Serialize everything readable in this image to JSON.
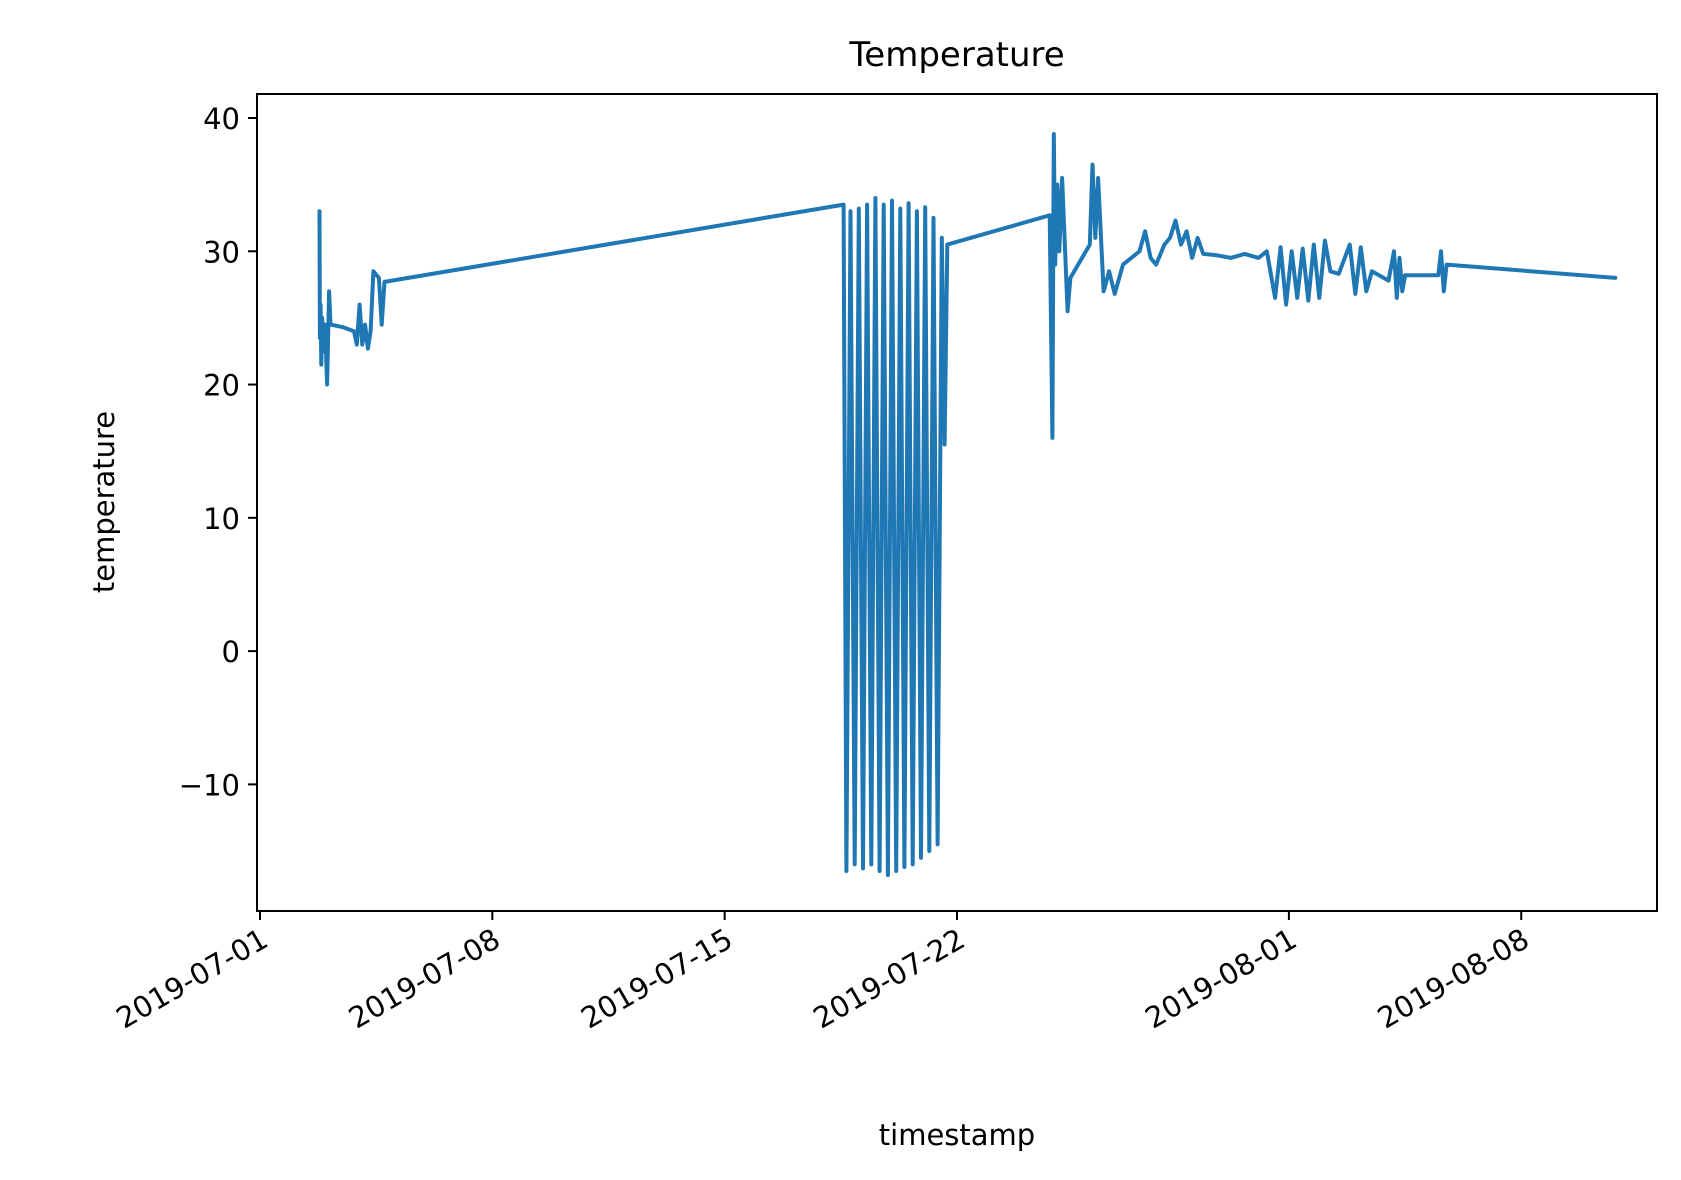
{
  "chart_data": {
    "type": "line",
    "title": "Temperature",
    "xlabel": "timestamp",
    "ylabel": "temperature",
    "x_ticks": [
      "2019-07-01",
      "2019-07-08",
      "2019-07-15",
      "2019-07-22",
      "2019-08-01",
      "2019-08-08"
    ],
    "y_ticks": [
      -10,
      0,
      10,
      20,
      30,
      40
    ],
    "xlim": [
      "2019-07-01",
      "2019-08-12"
    ],
    "ylim": [
      -19.5,
      41.8
    ],
    "grid": false,
    "line_color": "#1f77b4",
    "series": [
      {
        "points": [
          [
            "2019-07-02 19:00",
            33.0
          ],
          [
            "2019-07-02 19:20",
            23.5
          ],
          [
            "2019-07-02 19:50",
            26.0
          ],
          [
            "2019-07-02 20:20",
            21.5
          ],
          [
            "2019-07-02 21:00",
            25.0
          ],
          [
            "2019-07-02 22:00",
            22.5
          ],
          [
            "2019-07-02 23:00",
            24.5
          ],
          [
            "2019-07-03 00:30",
            20.0
          ],
          [
            "2019-07-03 02:00",
            27.0
          ],
          [
            "2019-07-03 03:00",
            24.5
          ],
          [
            "2019-07-03 12:00",
            24.3
          ],
          [
            "2019-07-03 20:00",
            24.0
          ],
          [
            "2019-07-03 22:00",
            23.0
          ],
          [
            "2019-07-04 00:00",
            26.0
          ],
          [
            "2019-07-04 02:00",
            23.0
          ],
          [
            "2019-07-04 04:00",
            24.5
          ],
          [
            "2019-07-04 06:00",
            22.7
          ],
          [
            "2019-07-04 08:00",
            24.0
          ],
          [
            "2019-07-04 10:00",
            28.5
          ],
          [
            "2019-07-04 14:00",
            28.0
          ],
          [
            "2019-07-04 16:00",
            24.5
          ],
          [
            "2019-07-04 18:00",
            27.7
          ],
          [
            "2019-07-18 14:00",
            33.5
          ],
          [
            "2019-07-18 16:00",
            -16.5
          ],
          [
            "2019-07-18 19:00",
            33.0
          ],
          [
            "2019-07-18 22:00",
            -16.0
          ],
          [
            "2019-07-19 01:00",
            33.2
          ],
          [
            "2019-07-19 04:00",
            -16.3
          ],
          [
            "2019-07-19 07:00",
            33.5
          ],
          [
            "2019-07-19 10:00",
            -16.0
          ],
          [
            "2019-07-19 13:00",
            34.0
          ],
          [
            "2019-07-19 16:00",
            -16.5
          ],
          [
            "2019-07-19 19:00",
            33.5
          ],
          [
            "2019-07-19 22:00",
            -16.8
          ],
          [
            "2019-07-20 01:00",
            33.8
          ],
          [
            "2019-07-20 04:00",
            -16.5
          ],
          [
            "2019-07-20 07:00",
            33.2
          ],
          [
            "2019-07-20 10:00",
            -16.2
          ],
          [
            "2019-07-20 13:00",
            33.6
          ],
          [
            "2019-07-20 16:00",
            -16.0
          ],
          [
            "2019-07-20 19:00",
            33.0
          ],
          [
            "2019-07-20 22:00",
            -15.5
          ],
          [
            "2019-07-21 01:00",
            33.3
          ],
          [
            "2019-07-21 04:00",
            -15.0
          ],
          [
            "2019-07-21 07:00",
            32.5
          ],
          [
            "2019-07-21 10:00",
            -14.5
          ],
          [
            "2019-07-21 13:00",
            31.0
          ],
          [
            "2019-07-21 15:00",
            15.5
          ],
          [
            "2019-07-21 17:00",
            30.5
          ],
          [
            "2019-07-24 19:00",
            32.7
          ],
          [
            "2019-07-24 21:00",
            16.0
          ],
          [
            "2019-07-24 22:00",
            38.8
          ],
          [
            "2019-07-24 23:00",
            29.0
          ],
          [
            "2019-07-25 00:30",
            35.0
          ],
          [
            "2019-07-25 02:00",
            30.0
          ],
          [
            "2019-07-25 04:00",
            35.5
          ],
          [
            "2019-07-25 08:00",
            25.5
          ],
          [
            "2019-07-25 10:00",
            28.0
          ],
          [
            "2019-07-26 00:00",
            30.5
          ],
          [
            "2019-07-26 02:00",
            36.5
          ],
          [
            "2019-07-26 04:00",
            31.0
          ],
          [
            "2019-07-26 06:00",
            35.5
          ],
          [
            "2019-07-26 10:00",
            27.0
          ],
          [
            "2019-07-26 14:00",
            28.5
          ],
          [
            "2019-07-26 18:00",
            26.8
          ],
          [
            "2019-07-27 00:00",
            29.0
          ],
          [
            "2019-07-27 12:00",
            30.0
          ],
          [
            "2019-07-27 16:00",
            31.5
          ],
          [
            "2019-07-27 20:00",
            29.5
          ],
          [
            "2019-07-28 00:00",
            29.0
          ],
          [
            "2019-07-28 06:00",
            30.5
          ],
          [
            "2019-07-28 10:00",
            31.0
          ],
          [
            "2019-07-28 14:00",
            32.3
          ],
          [
            "2019-07-28 18:00",
            30.5
          ],
          [
            "2019-07-28 22:00",
            31.5
          ],
          [
            "2019-07-29 02:00",
            29.5
          ],
          [
            "2019-07-29 06:00",
            31.0
          ],
          [
            "2019-07-29 10:00",
            29.8
          ],
          [
            "2019-07-29 20:00",
            29.7
          ],
          [
            "2019-07-30 06:00",
            29.5
          ],
          [
            "2019-07-30 16:00",
            29.8
          ],
          [
            "2019-07-31 02:00",
            29.5
          ],
          [
            "2019-07-31 08:00",
            30.0
          ],
          [
            "2019-07-31 14:00",
            26.5
          ],
          [
            "2019-07-31 18:00",
            30.3
          ],
          [
            "2019-07-31 22:00",
            26.0
          ],
          [
            "2019-08-01 02:00",
            30.0
          ],
          [
            "2019-08-01 06:00",
            26.5
          ],
          [
            "2019-08-01 10:00",
            30.2
          ],
          [
            "2019-08-01 14:00",
            26.3
          ],
          [
            "2019-08-01 18:00",
            30.5
          ],
          [
            "2019-08-01 22:00",
            26.5
          ],
          [
            "2019-08-02 02:00",
            30.8
          ],
          [
            "2019-08-02 06:00",
            28.5
          ],
          [
            "2019-08-02 12:00",
            28.3
          ],
          [
            "2019-08-02 20:00",
            30.5
          ],
          [
            "2019-08-03 00:00",
            26.8
          ],
          [
            "2019-08-03 04:00",
            30.3
          ],
          [
            "2019-08-03 08:00",
            27.0
          ],
          [
            "2019-08-03 12:00",
            28.5
          ],
          [
            "2019-08-04 00:00",
            27.8
          ],
          [
            "2019-08-04 04:00",
            30.0
          ],
          [
            "2019-08-04 06:00",
            26.5
          ],
          [
            "2019-08-04 08:00",
            29.5
          ],
          [
            "2019-08-04 10:00",
            27.0
          ],
          [
            "2019-08-04 12:00",
            28.2
          ],
          [
            "2019-08-05 12:00",
            28.2
          ],
          [
            "2019-08-05 14:00",
            30.0
          ],
          [
            "2019-08-05 16:00",
            27.0
          ],
          [
            "2019-08-05 18:00",
            29.0
          ],
          [
            "2019-08-10 20:00",
            28.0
          ]
        ]
      }
    ]
  }
}
